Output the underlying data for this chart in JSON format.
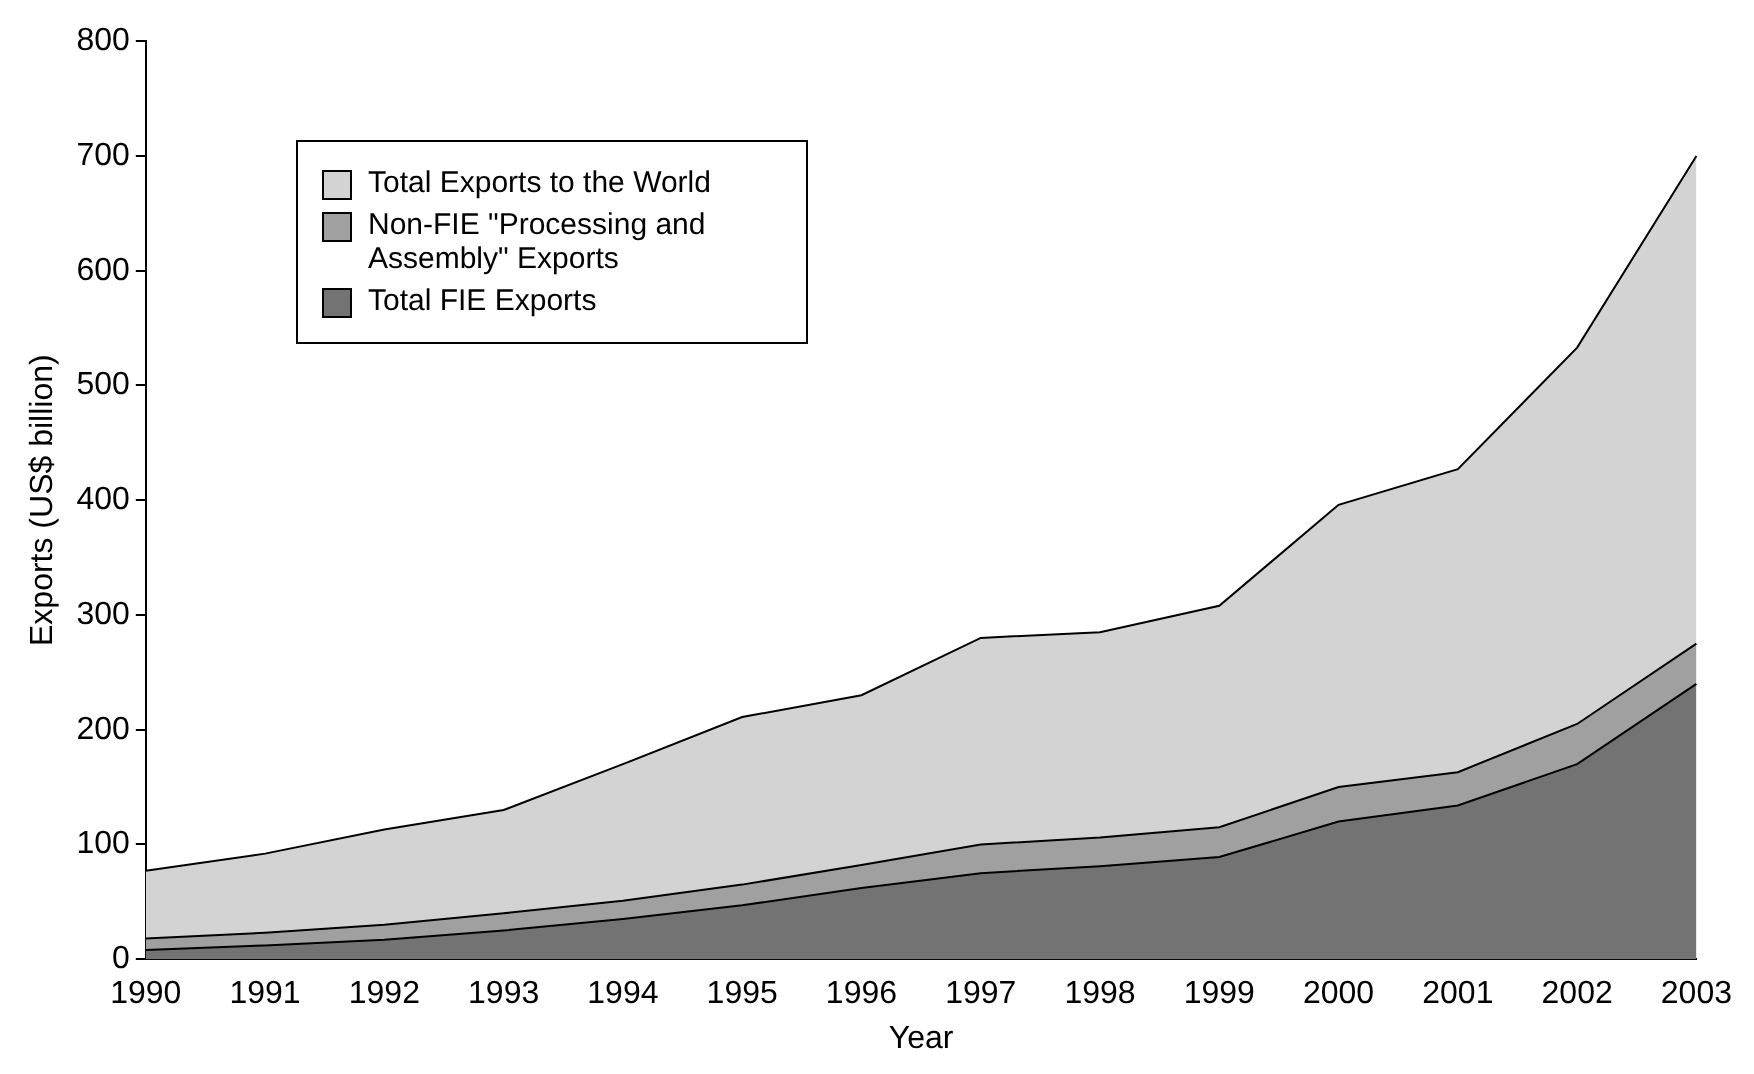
{
  "chart_data": {
    "type": "area",
    "xlabel": "Year",
    "ylabel": "Exports (US$ billion)",
    "categories": [
      "1990",
      "1991",
      "1992",
      "1993",
      "1994",
      "1995",
      "1996",
      "1997",
      "1998",
      "1999",
      "2000",
      "2001",
      "2002",
      "2003"
    ],
    "stacked": true,
    "ylim": [
      0,
      800
    ],
    "yticks": [
      0,
      100,
      200,
      300,
      400,
      500,
      600,
      700,
      800
    ],
    "grid": false,
    "legend": "top left",
    "series": [
      {
        "name": "Total FIE Exports",
        "color": "#737373",
        "values": [
          8,
          12,
          17,
          25,
          35,
          47,
          62,
          75,
          81,
          89,
          120,
          134,
          170,
          240
        ]
      },
      {
        "name": "Non-FIE \"Processing and Assembly\" Exports",
        "color": "#a0a0a0",
        "values": [
          10,
          11,
          13,
          15,
          16,
          18,
          20,
          25,
          25,
          26,
          30,
          29,
          35,
          35
        ]
      },
      {
        "name": "Total Exports to the World",
        "color": "#d3d3d3",
        "values": [
          59,
          69,
          83,
          90,
          119,
          146,
          148,
          180,
          179,
          193,
          246,
          264,
          328,
          425
        ]
      }
    ]
  }
}
